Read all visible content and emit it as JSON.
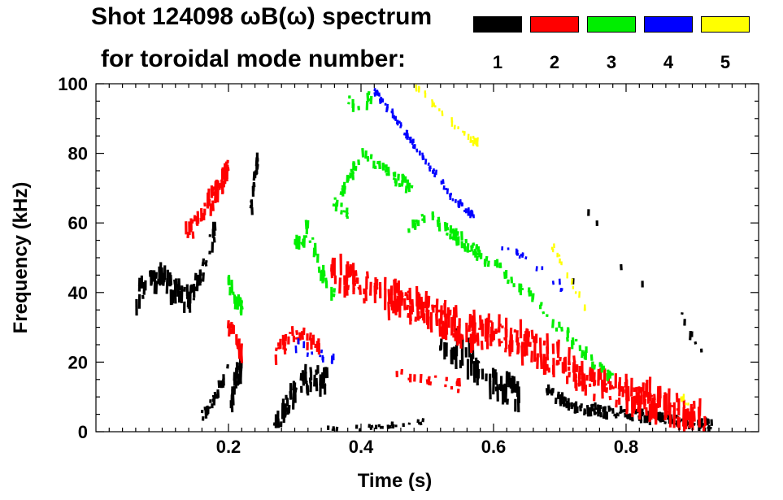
{
  "chart_data": {
    "type": "heatmap",
    "title_line1": "Shot 124098 ωB(ω) spectrum",
    "title_line2": "for toroidal mode number:",
    "xlabel": "Time (s)",
    "ylabel": "Frequency (kHz)",
    "xlim": [
      0.0,
      1.0
    ],
    "ylim": [
      0,
      100
    ],
    "xticks": [
      0.2,
      0.4,
      0.6,
      0.8
    ],
    "xtick_labels": [
      "0.2",
      "0.4",
      "0.6",
      "0.8"
    ],
    "yticks": [
      0,
      20,
      40,
      60,
      80,
      100
    ],
    "ytick_labels": [
      "0",
      "20",
      "40",
      "60",
      "80",
      "100"
    ],
    "legend": [
      {
        "label": "1",
        "color": "#000000"
      },
      {
        "label": "2",
        "color": "#ff0000"
      },
      {
        "label": "3",
        "color": "#00ee00"
      },
      {
        "label": "4",
        "color": "#0000ff"
      },
      {
        "label": "5",
        "color": "#ffff00"
      }
    ],
    "series": [
      {
        "name": "n=1",
        "color": "#000000",
        "width": 3.2,
        "segments": [
          {
            "points": [
              [
                0.06,
                38
              ],
              [
                0.08,
                43
              ],
              [
                0.1,
                44
              ],
              [
                0.12,
                40
              ],
              [
                0.14,
                38
              ],
              [
                0.16,
                46
              ],
              [
                0.18,
                58
              ]
            ],
            "spread": 6,
            "count": 90
          },
          {
            "points": [
              [
                0.16,
                4
              ],
              [
                0.18,
                10
              ],
              [
                0.2,
                18
              ]
            ],
            "spread": 3,
            "count": 25
          },
          {
            "points": [
              [
                0.205,
                8
              ],
              [
                0.21,
                15
              ],
              [
                0.22,
                18
              ]
            ],
            "spread": 5,
            "count": 30
          },
          {
            "points": [
              [
                0.235,
                64
              ],
              [
                0.24,
                72
              ],
              [
                0.245,
                80
              ]
            ],
            "spread": 4,
            "count": 18
          },
          {
            "points": [
              [
                0.27,
                2
              ],
              [
                0.29,
                8
              ],
              [
                0.31,
                14
              ],
              [
                0.33,
                16
              ],
              [
                0.35,
                14
              ]
            ],
            "spread": 6,
            "count": 55
          },
          {
            "points": [
              [
                0.35,
                1
              ],
              [
                0.4,
                1
              ],
              [
                0.45,
                2
              ],
              [
                0.5,
                3
              ]
            ],
            "spread": 1,
            "count": 25
          },
          {
            "points": [
              [
                0.52,
                28
              ],
              [
                0.56,
                22
              ],
              [
                0.6,
                14
              ],
              [
                0.64,
                10
              ]
            ],
            "spread": 8,
            "count": 55
          },
          {
            "points": [
              [
                0.68,
                12
              ],
              [
                0.72,
                7
              ],
              [
                0.76,
                6
              ],
              [
                0.8,
                5
              ],
              [
                0.84,
                4
              ],
              [
                0.88,
                3
              ],
              [
                0.93,
                2
              ]
            ],
            "spread": 2.5,
            "count": 160
          },
          {
            "points": [
              [
                0.72,
                42
              ],
              [
                0.74,
                65
              ],
              [
                0.78,
                50
              ],
              [
                0.88,
                35
              ],
              [
                0.92,
                20
              ]
            ],
            "spread": 2,
            "count": 12
          }
        ]
      },
      {
        "name": "n=2",
        "color": "#ff0000",
        "width": 3.2,
        "segments": [
          {
            "points": [
              [
                0.135,
                56
              ],
              [
                0.16,
                62
              ],
              [
                0.19,
                72
              ],
              [
                0.2,
                76
              ]
            ],
            "spread": 5,
            "count": 55
          },
          {
            "points": [
              [
                0.2,
                30
              ],
              [
                0.21,
                28
              ],
              [
                0.22,
                22
              ]
            ],
            "spread": 4,
            "count": 18
          },
          {
            "points": [
              [
                0.27,
                22
              ],
              [
                0.3,
                28
              ],
              [
                0.34,
                25
              ]
            ],
            "spread": 4,
            "count": 30
          },
          {
            "points": [
              [
                0.355,
                46
              ],
              [
                0.4,
                42
              ],
              [
                0.45,
                38
              ],
              [
                0.5,
                35
              ],
              [
                0.55,
                30
              ],
              [
                0.6,
                28
              ],
              [
                0.65,
                25
              ],
              [
                0.7,
                20
              ],
              [
                0.75,
                14
              ],
              [
                0.8,
                11
              ],
              [
                0.85,
                8
              ],
              [
                0.92,
                3
              ]
            ],
            "spread": 8,
            "count": 380
          },
          {
            "points": [
              [
                0.45,
                16
              ],
              [
                0.5,
                15
              ],
              [
                0.55,
                13
              ]
            ],
            "spread": 3,
            "count": 20
          }
        ]
      },
      {
        "name": "n=3",
        "color": "#00ee00",
        "width": 3.2,
        "segments": [
          {
            "points": [
              [
                0.2,
                44
              ],
              [
                0.21,
                38
              ],
              [
                0.22,
                36
              ]
            ],
            "spread": 5,
            "count": 18
          },
          {
            "points": [
              [
                0.3,
                54
              ],
              [
                0.32,
                58
              ],
              [
                0.34,
                46
              ],
              [
                0.36,
                40
              ]
            ],
            "spread": 5,
            "count": 30
          },
          {
            "points": [
              [
                0.37,
                68
              ],
              [
                0.4,
                80
              ],
              [
                0.42,
                77
              ],
              [
                0.45,
                73
              ],
              [
                0.48,
                70
              ]
            ],
            "spread": 3,
            "count": 55
          },
          {
            "points": [
              [
                0.47,
                58
              ],
              [
                0.5,
                63
              ],
              [
                0.55,
                55
              ],
              [
                0.6,
                48
              ],
              [
                0.65,
                40
              ],
              [
                0.7,
                30
              ],
              [
                0.75,
                20
              ],
              [
                0.78,
                15
              ]
            ],
            "spread": 3,
            "count": 110
          },
          {
            "points": [
              [
                0.36,
                66
              ],
              [
                0.38,
                62
              ]
            ],
            "spread": 3,
            "count": 10
          },
          {
            "points": [
              [
                0.38,
                95
              ],
              [
                0.4,
                92
              ],
              [
                0.42,
                98
              ]
            ],
            "spread": 3,
            "count": 10
          }
        ]
      },
      {
        "name": "n=4",
        "color": "#0000ff",
        "width": 2.6,
        "segments": [
          {
            "points": [
              [
                0.42,
                98
              ],
              [
                0.46,
                88
              ],
              [
                0.5,
                77
              ],
              [
                0.54,
                67
              ],
              [
                0.57,
                62
              ]
            ],
            "spread": 1.6,
            "count": 90
          },
          {
            "points": [
              [
                0.3,
                25
              ],
              [
                0.34,
                22
              ],
              [
                0.36,
                20
              ]
            ],
            "spread": 3,
            "count": 12
          },
          {
            "points": [
              [
                0.6,
                55
              ],
              [
                0.65,
                50
              ],
              [
                0.7,
                42
              ],
              [
                0.72,
                38
              ]
            ],
            "spread": 2,
            "count": 18
          }
        ]
      },
      {
        "name": "n=5",
        "color": "#ffff00",
        "width": 2.4,
        "segments": [
          {
            "points": [
              [
                0.48,
                100
              ],
              [
                0.52,
                92
              ],
              [
                0.56,
                85
              ],
              [
                0.58,
                82
              ]
            ],
            "spread": 2,
            "count": 30
          },
          {
            "points": [
              [
                0.68,
                56
              ],
              [
                0.7,
                50
              ],
              [
                0.72,
                42
              ],
              [
                0.74,
                36
              ]
            ],
            "spread": 2,
            "count": 14
          },
          {
            "points": [
              [
                0.88,
                10
              ],
              [
                0.9,
                8
              ]
            ],
            "spread": 2,
            "count": 6
          }
        ]
      }
    ]
  }
}
